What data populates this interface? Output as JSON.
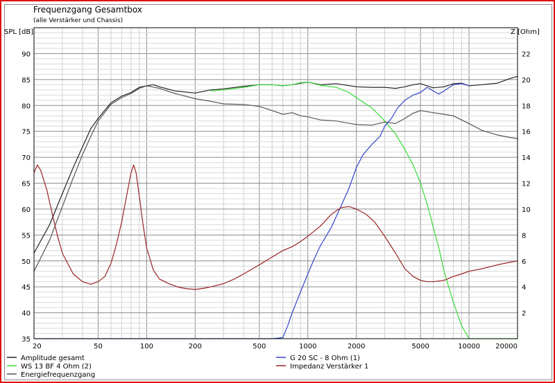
{
  "chart_data": {
    "type": "line",
    "title": "Frequenzgang Gesamtbox",
    "subtitle": "(alle Verstärker und Chassis)",
    "ylabel_left": "SPL [dB]",
    "ylabel_right": "Z [Ohm]",
    "x_scale": "log",
    "xlim": [
      20,
      20000
    ],
    "ylim_left": [
      35,
      95
    ],
    "ylim_right": [
      0,
      24
    ],
    "x_ticks": [
      20,
      50,
      100,
      200,
      500,
      1000,
      2000,
      5000,
      10000,
      20000
    ],
    "y_ticks_left": [
      35,
      40,
      45,
      50,
      55,
      60,
      65,
      70,
      75,
      80,
      85,
      90
    ],
    "y_ticks_right": [
      2,
      4,
      6,
      8,
      10,
      12,
      14,
      16,
      18,
      20,
      22
    ],
    "grid": true,
    "series": [
      {
        "name": "Amplitude gesamt",
        "color": "#222222",
        "axis": "left",
        "x": [
          20,
          25,
          30,
          35,
          40,
          45,
          50,
          60,
          70,
          80,
          90,
          100,
          110,
          120,
          150,
          200,
          250,
          300,
          400,
          500,
          600,
          700,
          800,
          900,
          1000,
          1200,
          1500,
          2000,
          2500,
          3000,
          3500,
          4000,
          4500,
          5000,
          6000,
          7000,
          8000,
          9000,
          10000,
          12000,
          15000,
          18000,
          20000
        ],
        "y": [
          51.5,
          57,
          63,
          68,
          72,
          75.5,
          77.5,
          80.5,
          81.8,
          82.5,
          83.5,
          83.8,
          84,
          83.6,
          82.8,
          82.4,
          83,
          83.2,
          83.7,
          84,
          84,
          83.8,
          84,
          84.3,
          84.5,
          84,
          84.2,
          83.6,
          83.5,
          83.5,
          83.3,
          83.6,
          84,
          84.2,
          83.4,
          83.6,
          84.2,
          84.3,
          83.8,
          84,
          84.3,
          85.2,
          85.6
        ]
      },
      {
        "name": "WS 13 BF 4 Ohm (2)",
        "color": "#33dd33",
        "axis": "left",
        "x": [
          250,
          300,
          400,
          500,
          600,
          700,
          800,
          900,
          1000,
          1200,
          1500,
          1800,
          2000,
          2500,
          3000,
          3500,
          4000,
          4500,
          5000,
          5500,
          6000,
          6500,
          7000,
          8000,
          9000,
          10000,
          12000,
          15000,
          20000
        ],
        "y": [
          82.8,
          83,
          83.5,
          84,
          84,
          83.8,
          84,
          84.4,
          84.5,
          83.9,
          83.5,
          82.5,
          81.5,
          79.5,
          77,
          74.5,
          71.5,
          68.5,
          65,
          61,
          56.5,
          52.5,
          48,
          42,
          37.5,
          35,
          35,
          35,
          35
        ]
      },
      {
        "name": "Energiefrequenzgang",
        "color": "#555555",
        "axis": "left",
        "x": [
          20,
          25,
          30,
          35,
          40,
          45,
          50,
          60,
          70,
          80,
          90,
          100,
          120,
          150,
          200,
          250,
          300,
          400,
          500,
          600,
          700,
          800,
          900,
          1000,
          1200,
          1500,
          2000,
          2500,
          3000,
          3500,
          4000,
          4500,
          5000,
          6000,
          7000,
          8000,
          9000,
          10000,
          12000,
          15000,
          18000,
          20000
        ],
        "y": [
          48,
          54,
          60.5,
          66,
          70.5,
          74,
          77,
          80.2,
          81.5,
          82.3,
          83.3,
          83.8,
          83.3,
          82.3,
          81.3,
          80.8,
          80.3,
          80.2,
          79.8,
          79,
          78.3,
          78.6,
          78,
          77.8,
          77.2,
          77,
          76.3,
          76.2,
          76.8,
          76.5,
          77.5,
          78.5,
          79,
          78.6,
          78.3,
          78,
          77.2,
          76.5,
          75.2,
          74.3,
          73.8,
          73.6
        ]
      },
      {
        "name": "G 20 SC - 8 Ohm (1)",
        "color": "#3344cc",
        "axis": "left",
        "x": [
          20,
          100,
          300,
          600,
          700,
          750,
          800,
          900,
          1000,
          1100,
          1200,
          1400,
          1600,
          1800,
          2000,
          2200,
          2500,
          2800,
          3000,
          3300,
          3600,
          4000,
          4500,
          5000,
          5500,
          6000,
          6500,
          7000,
          8000,
          9000,
          10000
        ],
        "y": [
          35,
          35,
          35,
          35,
          35.2,
          37.5,
          40,
          44,
          47.5,
          50.5,
          53,
          56.5,
          60.5,
          64,
          68,
          70.5,
          72.5,
          74,
          76,
          77.5,
          79.5,
          81,
          82,
          82.5,
          83.5,
          82.8,
          82.2,
          82.8,
          84,
          84.2,
          83.8
        ]
      },
      {
        "name": "Impedanz Verstärker 1",
        "color": "#992222",
        "axis": "right",
        "x": [
          20,
          21,
          22,
          24,
          26,
          28,
          30,
          35,
          40,
          45,
          50,
          55,
          60,
          65,
          70,
          75,
          80,
          83,
          86,
          90,
          95,
          100,
          110,
          120,
          140,
          160,
          180,
          200,
          230,
          260,
          300,
          350,
          400,
          500,
          600,
          700,
          800,
          900,
          1000,
          1200,
          1400,
          1600,
          1800,
          2000,
          2300,
          2600,
          3000,
          3500,
          4000,
          4500,
          5000,
          5500,
          6000,
          7000,
          8000,
          9000,
          10000,
          12000,
          15000,
          18000,
          20000
        ],
        "y": [
          12.8,
          13.4,
          13.0,
          11.5,
          9.6,
          7.9,
          6.6,
          5.0,
          4.4,
          4.2,
          4.4,
          4.8,
          5.8,
          7.3,
          9.0,
          11.0,
          12.8,
          13.4,
          12.8,
          11.0,
          8.8,
          7.0,
          5.3,
          4.6,
          4.2,
          3.95,
          3.85,
          3.8,
          3.9,
          4.05,
          4.25,
          4.6,
          5.0,
          5.7,
          6.3,
          6.8,
          7.1,
          7.5,
          7.9,
          8.7,
          9.6,
          10.1,
          10.2,
          10.0,
          9.6,
          9.0,
          7.9,
          6.6,
          5.4,
          4.8,
          4.5,
          4.4,
          4.4,
          4.5,
          4.8,
          5.0,
          5.2,
          5.4,
          5.7,
          5.9,
          6.0
        ]
      }
    ],
    "legend": [
      {
        "label": "Amplitude gesamt",
        "color": "#222222",
        "column": 0,
        "row": 0
      },
      {
        "label": "WS 13 BF 4 Ohm (2)",
        "color": "#33dd33",
        "column": 0,
        "row": 1
      },
      {
        "label": "Energiefrequenzgang",
        "color": "#555555",
        "column": 0,
        "row": 2
      },
      {
        "label": "G 20 SC - 8 Ohm (1)",
        "color": "#3344cc",
        "column": 1,
        "row": 0
      },
      {
        "label": "Impedanz Verstärker 1",
        "color": "#992222",
        "column": 1,
        "row": 1
      }
    ],
    "legend_position": "bottom"
  }
}
